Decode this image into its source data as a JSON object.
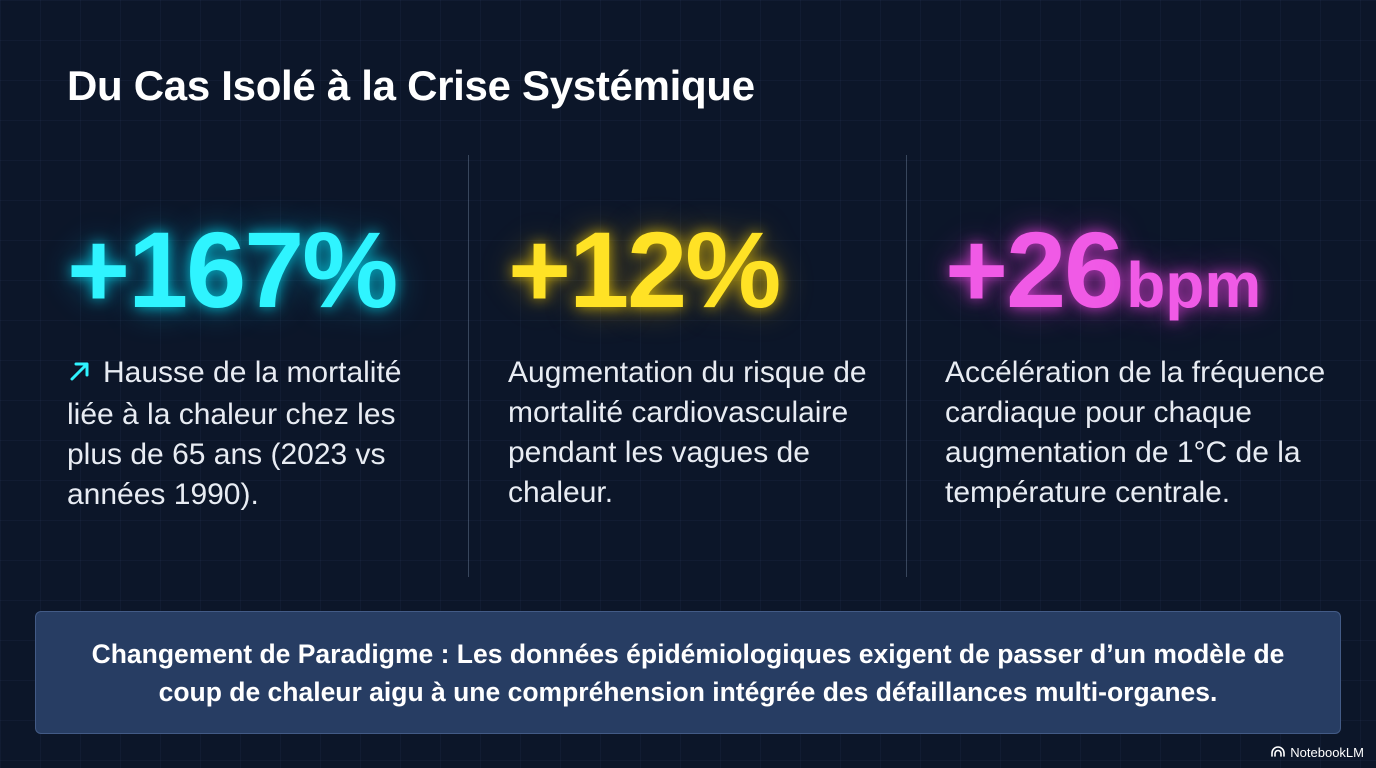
{
  "title": "Du Cas Isolé à la Crise Systémique",
  "stats": [
    {
      "value": "+167%",
      "unit": "",
      "color": "#2ff4ff",
      "icon": "trend-up-arrow-icon",
      "description": "Hausse de la mortalité liée à la chaleur chez les plus de 65 ans (2023 vs années 1990)."
    },
    {
      "value": "+12%",
      "unit": "",
      "color": "#ffe225",
      "description": "Augmentation du risque de mortalité cardiovasculaire pendant les vagues de chaleur."
    },
    {
      "value": "+26",
      "unit": "bpm",
      "color": "#f05ae6",
      "description": "Accélération de la fréquence cardiaque pour chaque augmentation de 1°C de la température centrale."
    }
  ],
  "banner": {
    "text": "Changement de Paradigme : Les données épidémiologiques exigent de passer d’un modèle de coup de chaleur aigu à une compréhension intégrée des défaillances multi-organes."
  },
  "brand": {
    "label": "NotebookLM",
    "icon": "notebooklm-logo-icon"
  },
  "colors": {
    "background": "#0c1629",
    "banner": "#273d63"
  }
}
